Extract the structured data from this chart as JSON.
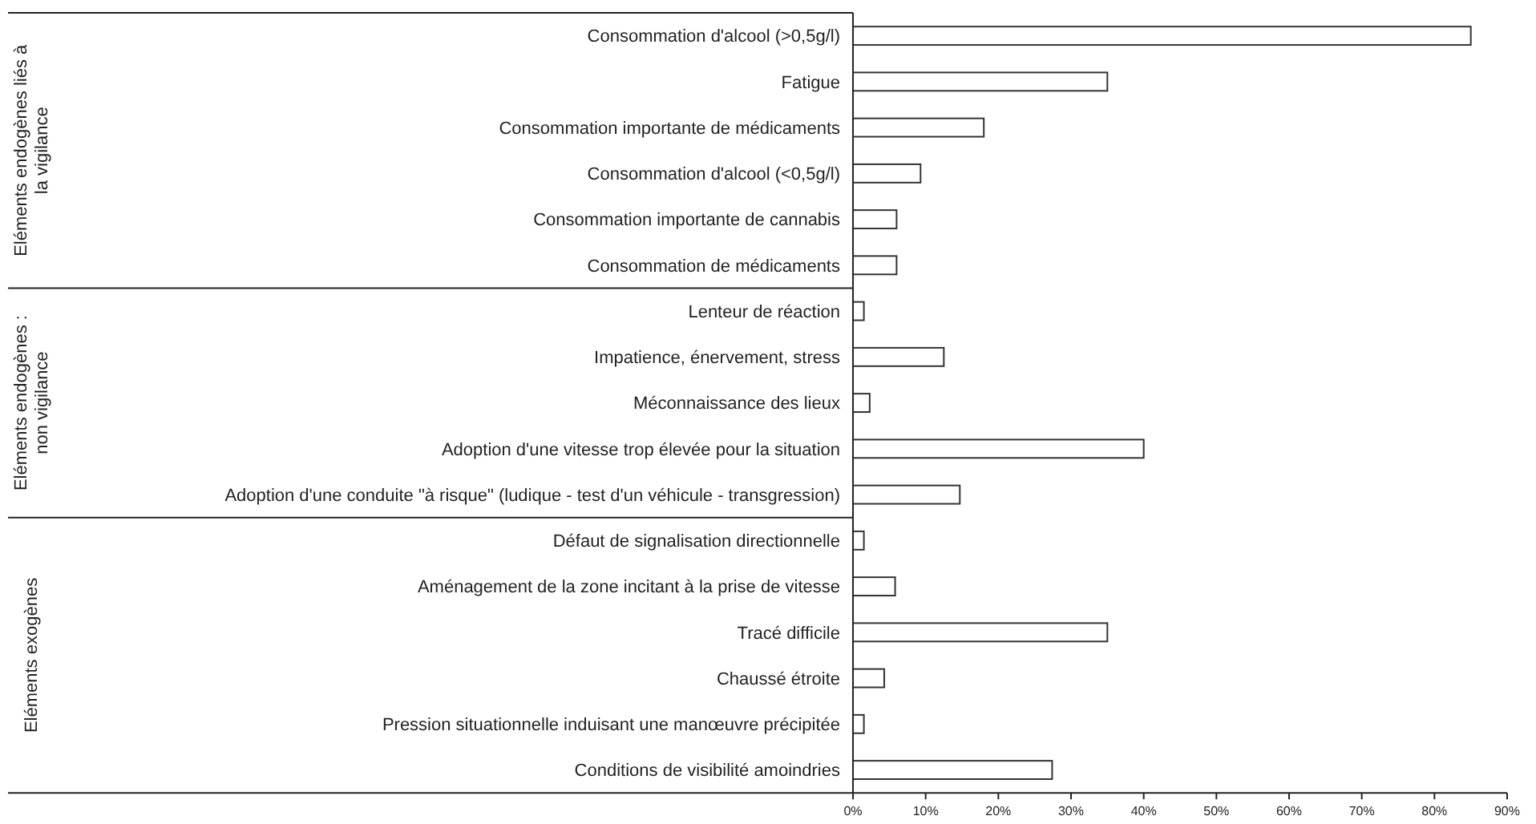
{
  "chart_data": {
    "type": "bar",
    "orientation": "horizontal",
    "categories": [
      "Consommation d'alcool (>0,5g/l)",
      "Fatigue",
      "Consommation importante de médicaments",
      "Consommation d'alcool (<0,5g/l)",
      "Consommation importante de cannabis",
      "Consommation de médicaments",
      "Lenteur de réaction",
      "Impatience, énervement, stress",
      "Méconnaissance des lieux",
      "Adoption d'une vitesse trop élevée pour la situation",
      "Adoption d'une conduite \"à risque\" (ludique - test d'un véhicule - transgression)",
      "Défaut de signalisation directionnelle",
      "Aménagement de la zone incitant à la prise de vitesse",
      "Tracé difficile",
      "Chaussé étroite",
      "Pression situationnelle induisant une manœuvre précipitée",
      "Conditions de visibilité amoindries"
    ],
    "values": [
      85,
      35,
      18,
      9.3,
      6,
      6,
      1.5,
      12.5,
      2.3,
      40,
      14.7,
      1.5,
      5.8,
      35,
      4.3,
      1.5,
      27.4
    ],
    "color": "#ffffff",
    "xlim": [
      0,
      90
    ],
    "xticks": [
      {
        "value": 0,
        "label": "0%"
      },
      {
        "value": 10,
        "label": "10%"
      },
      {
        "value": 20,
        "label": "20%"
      },
      {
        "value": 30,
        "label": "30%"
      },
      {
        "value": 40,
        "label": "40%"
      },
      {
        "value": 50,
        "label": "50%"
      },
      {
        "value": 60,
        "label": "60%"
      },
      {
        "value": 70,
        "label": "70%"
      },
      {
        "value": 80,
        "label": "80%"
      },
      {
        "value": 90,
        "label": "90%"
      }
    ],
    "annotations": [
      "Eléments endogènes liés à la vigilance",
      "Eléments endogènes : non vigilance",
      "Eléments exogènes"
    ],
    "grid": false
  }
}
